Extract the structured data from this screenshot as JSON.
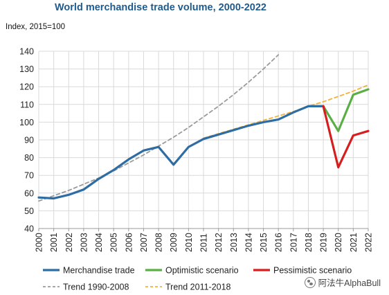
{
  "chart_data": {
    "type": "line",
    "title": "World merchandise trade volume, 2000-2022",
    "subtitle": "Index, 2015=100",
    "x": [
      "2000",
      "2001",
      "2002",
      "2003",
      "2004",
      "2005",
      "2006",
      "2007",
      "2008",
      "2009",
      "2010",
      "2011",
      "2012",
      "2013",
      "2014",
      "2015",
      "2016",
      "2017",
      "2018",
      "2019",
      "2020",
      "2021",
      "2022"
    ],
    "ylim": [
      40,
      140
    ],
    "yticks": [
      40,
      50,
      60,
      70,
      80,
      90,
      100,
      110,
      120,
      130,
      140
    ],
    "grid": true,
    "legend_position": "bottom",
    "series": [
      {
        "name": "Merchandise trade",
        "color": "#2e6da4",
        "dash": "solid",
        "x": [
          "2000",
          "2001",
          "2002",
          "2003",
          "2004",
          "2005",
          "2006",
          "2007",
          "2008",
          "2009",
          "2010",
          "2011",
          "2012",
          "2013",
          "2014",
          "2015",
          "2016",
          "2017",
          "2018",
          "2019"
        ],
        "values": [
          57.5,
          57,
          59,
          62,
          68,
          73,
          79,
          84,
          86,
          76,
          86,
          90.5,
          93,
          95.5,
          98,
          100,
          101.5,
          105.5,
          109,
          109
        ]
      },
      {
        "name": "Optimistic scenario",
        "color": "#5aaf44",
        "dash": "solid",
        "x": [
          "2019",
          "2020",
          "2021",
          "2022"
        ],
        "values": [
          109,
          95,
          115.5,
          118.5
        ]
      },
      {
        "name": "Pessimistic scenario",
        "color": "#d51e1e",
        "dash": "solid",
        "x": [
          "2019",
          "2020",
          "2021",
          "2022"
        ],
        "values": [
          109,
          74.5,
          92.5,
          95
        ]
      },
      {
        "name": "Trend 1990-2008",
        "color": "#9a9a9a",
        "dash": "dashed",
        "x": [
          "2000",
          "2001",
          "2002",
          "2003",
          "2004",
          "2005",
          "2006",
          "2007",
          "2008",
          "2009",
          "2010",
          "2011",
          "2012",
          "2013",
          "2014",
          "2015",
          "2016"
        ],
        "values": [
          55.5,
          58.5,
          61.5,
          65,
          68.5,
          72.5,
          77,
          81.5,
          86.5,
          91.5,
          97,
          103,
          109,
          115.5,
          122.5,
          130,
          138
        ]
      },
      {
        "name": "Trend 2011-2018",
        "color": "#f2b233",
        "dash": "dashed",
        "x": [
          "2011",
          "2012",
          "2013",
          "2014",
          "2015",
          "2016",
          "2017",
          "2018",
          "2019",
          "2020",
          "2021",
          "2022"
        ],
        "values": [
          91,
          93.5,
          96,
          98.5,
          101,
          103.5,
          106,
          109,
          111.5,
          114.5,
          117.5,
          121
        ]
      }
    ]
  },
  "watermark": {
    "text": "阿法牛AlphaBull",
    "icon": "wechat-icon"
  }
}
